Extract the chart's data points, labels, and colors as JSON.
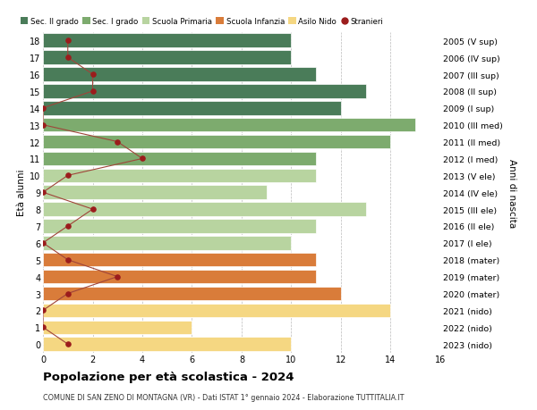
{
  "ages": [
    18,
    17,
    16,
    15,
    14,
    13,
    12,
    11,
    10,
    9,
    8,
    7,
    6,
    5,
    4,
    3,
    2,
    1,
    0
  ],
  "years": [
    "2005 (V sup)",
    "2006 (IV sup)",
    "2007 (III sup)",
    "2008 (II sup)",
    "2009 (I sup)",
    "2010 (III med)",
    "2011 (II med)",
    "2012 (I med)",
    "2013 (V ele)",
    "2014 (IV ele)",
    "2015 (III ele)",
    "2016 (II ele)",
    "2017 (I ele)",
    "2018 (mater)",
    "2019 (mater)",
    "2020 (mater)",
    "2021 (nido)",
    "2022 (nido)",
    "2023 (nido)"
  ],
  "bar_values": [
    10,
    10,
    11,
    13,
    12,
    15,
    14,
    11,
    11,
    9,
    13,
    11,
    10,
    11,
    11,
    12,
    14,
    6,
    10
  ],
  "categories": [
    "Sec. II grado",
    "Sec. II grado",
    "Sec. II grado",
    "Sec. II grado",
    "Sec. II grado",
    "Sec. I grado",
    "Sec. I grado",
    "Sec. I grado",
    "Scuola Primaria",
    "Scuola Primaria",
    "Scuola Primaria",
    "Scuola Primaria",
    "Scuola Primaria",
    "Scuola Infanzia",
    "Scuola Infanzia",
    "Scuola Infanzia",
    "Asilo Nido",
    "Asilo Nido",
    "Asilo Nido"
  ],
  "stranieri": [
    1,
    1,
    2,
    2,
    0,
    0,
    3,
    4,
    1,
    0,
    2,
    1,
    0,
    1,
    3,
    1,
    0,
    0,
    1
  ],
  "colors": {
    "Sec. II grado": "#4a7c59",
    "Sec. I grado": "#7dab6e",
    "Scuola Primaria": "#b8d4a0",
    "Scuola Infanzia": "#d97c3a",
    "Asilo Nido": "#f5d782"
  },
  "stranieri_color": "#9b1c1c",
  "stranieri_line_color": "#a0453a",
  "title": "Popolazione per età scolastica - 2024",
  "subtitle": "COMUNE DI SAN ZENO DI MONTAGNA (VR) - Dati ISTAT 1° gennaio 2024 - Elaborazione TUTTITALIA.IT",
  "ylabel_left": "Età alunni",
  "ylabel_right": "Anni di nascita",
  "xlim": [
    0,
    16
  ],
  "background_color": "#ffffff"
}
